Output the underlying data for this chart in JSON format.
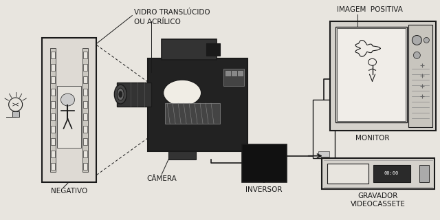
{
  "bg_color": "#e8e5df",
  "fg_color": "#1a1a1a",
  "labels": {
    "negativo": "NEGATIVO",
    "camera": "CÂMERA",
    "vidro_line1": "VIDRO TRANSLÚCIDO",
    "vidro_line2": "OU ACRÍLICO",
    "imagem": "IMAGEM  POSITIVA",
    "inversor": "INVERSOR",
    "monitor": "MONITOR",
    "gravador_line1": "GRAVADOR",
    "gravador_line2": "VIDEOCASSETE"
  },
  "font_size": 7.5
}
